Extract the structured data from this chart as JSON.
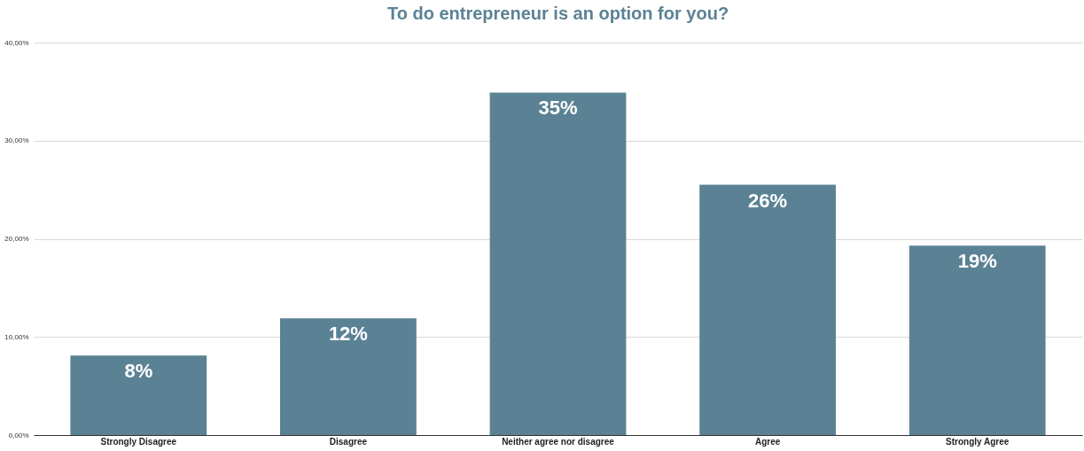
{
  "chart_data": {
    "type": "bar",
    "title": "To do entrepreneur is an option for you?",
    "categories": [
      "Strongly Disagree",
      "Disagree",
      "Neither agree nor disagree",
      "Agree",
      "Strongly Agree"
    ],
    "values": [
      8.1,
      11.9,
      34.9,
      25.5,
      19.3
    ],
    "value_labels": [
      "8%",
      "12%",
      "35%",
      "26%",
      "19%"
    ],
    "color": "#5b8294",
    "ylim": [
      0,
      40
    ],
    "yticks": [
      {
        "value": 0,
        "label": "0,00%"
      },
      {
        "value": 10,
        "label": "10,00%"
      },
      {
        "value": 20,
        "label": "20,00%"
      },
      {
        "value": 30,
        "label": "30,00%"
      },
      {
        "value": 40,
        "label": "40,00%"
      }
    ],
    "grid": "y"
  }
}
